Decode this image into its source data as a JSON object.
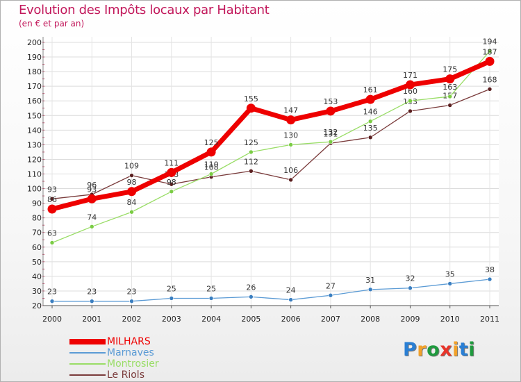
{
  "chart_data": {
    "type": "line",
    "title": "Evolution des Impôts locaux par Habitant",
    "subtitle": "(en € et par an)",
    "x": [
      "2000",
      "2001",
      "2002",
      "2003",
      "2004",
      "2005",
      "2006",
      "2007",
      "2008",
      "2009",
      "2010",
      "2011"
    ],
    "ylim": [
      20,
      200
    ],
    "yticks": [
      20,
      30,
      40,
      50,
      60,
      70,
      80,
      90,
      100,
      110,
      120,
      130,
      140,
      150,
      160,
      170,
      180,
      190,
      200
    ],
    "grid": true,
    "legend_position": "bottom-left",
    "series": [
      {
        "name": "Marnaves",
        "color": "#5b9bd5",
        "marker": "#3a7ec0",
        "values": [
          23,
          23,
          23,
          25,
          25,
          26,
          24,
          27,
          31,
          32,
          35,
          38
        ]
      },
      {
        "name": "Le Riols",
        "color": "#7a3b3b",
        "marker": "#5a1f1f",
        "values": [
          93,
          96,
          109,
          103,
          108,
          112,
          106,
          131,
          135,
          153,
          157,
          168
        ]
      },
      {
        "name": "Montrosier",
        "color": "#99dd66",
        "marker": "#7acc44",
        "values": [
          63,
          74,
          84,
          98,
          110,
          125,
          130,
          132,
          146,
          160,
          163,
          194
        ]
      },
      {
        "name": "MILHARS",
        "color": "#ee0000",
        "marker": "#ee0000",
        "values": [
          86,
          93,
          98,
          111,
          125,
          155,
          147,
          153,
          161,
          171,
          175,
          187
        ]
      }
    ],
    "legend": [
      {
        "name": "MILHARS",
        "color": "#ee0000"
      },
      {
        "name": "Marnaves",
        "color": "#5b9bd5"
      },
      {
        "name": "Montrosier",
        "color": "#99dd66"
      },
      {
        "name": "Le Riols",
        "color": "#7a3b3b"
      }
    ]
  },
  "logo": {
    "letters": [
      "P",
      "r",
      "o",
      "x",
      "i",
      "t",
      "i"
    ],
    "colors": [
      "#2a7fd4",
      "#f2a12a",
      "#1f9a3e",
      "#e8342a",
      "#f2a12a",
      "#2a7fd4",
      "#1f9a3e"
    ]
  }
}
